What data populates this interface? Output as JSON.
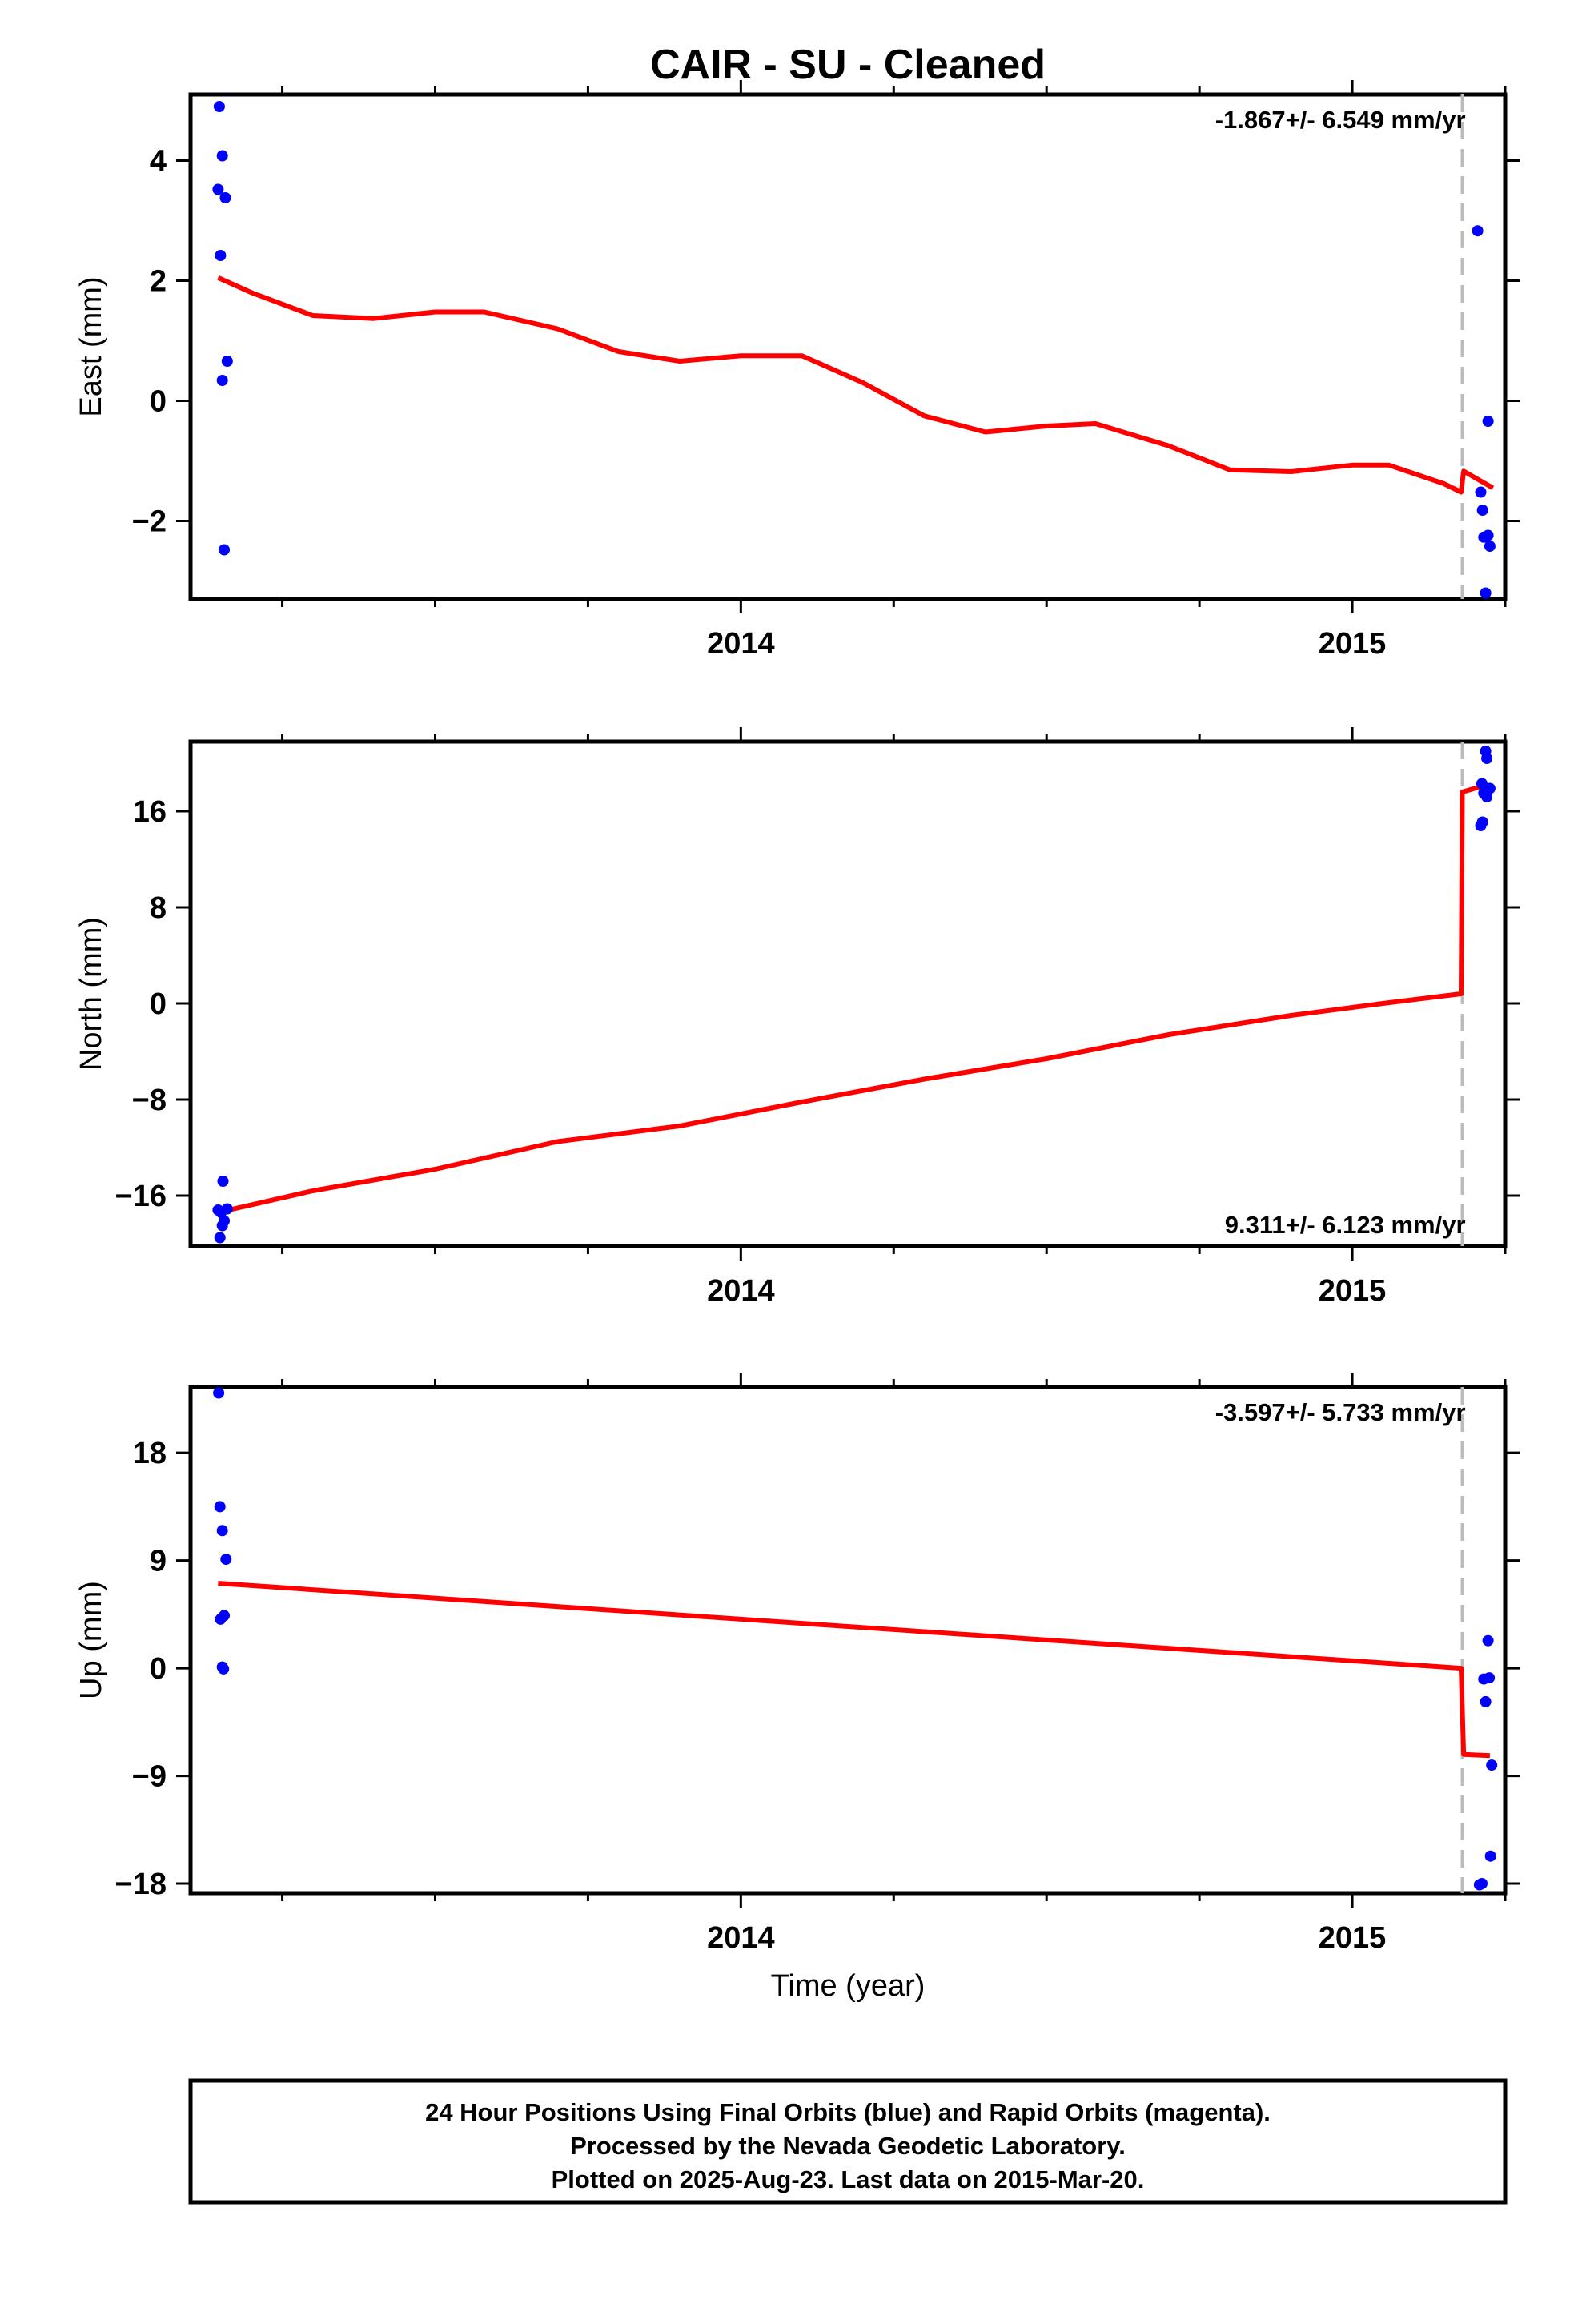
{
  "title": "CAIR  - SU - Cleaned",
  "xlabel": "Time (year)",
  "footer": [
    "24 Hour Positions Using Final Orbits (blue) and Rapid Orbits (magenta).",
    "Processed by the Nevada Geodetic Laboratory.",
    "Plotted on 2025-Aug-23. Last data on 2015-Mar-20."
  ],
  "colors": {
    "final_orbits": "#0000ff",
    "model": "#ff0000",
    "break_line": "#bbbbbb",
    "axes": "#000000"
  },
  "chart_data": [
    {
      "type": "scatter",
      "ylabel": "East (mm)",
      "rate_label": "-1.867+/- 6.549 mm/yr",
      "rate_position": "top-right",
      "xlim": [
        2013.1,
        2015.25
      ],
      "ylim": [
        -3.3,
        5.1
      ],
      "yticks": [
        -2,
        0,
        2,
        4
      ],
      "ytick_labels": [
        "−2",
        "0",
        "2",
        "4"
      ],
      "xticks": [
        2014,
        2015
      ],
      "xtick_labels": [
        "2014",
        "2015"
      ],
      "xminor": [
        2013.25,
        2013.5,
        2013.75,
        2014.25,
        2014.5,
        2014.75,
        2015.25
      ],
      "break_x": 2015.18,
      "points": [
        [
          2013.147,
          4.9
        ],
        [
          2013.152,
          4.08
        ],
        [
          2013.145,
          3.52
        ],
        [
          2013.157,
          3.38
        ],
        [
          2013.149,
          2.42
        ],
        [
          2013.16,
          0.66
        ],
        [
          2013.152,
          0.34
        ],
        [
          2013.155,
          -2.48
        ],
        [
          2015.205,
          2.83
        ],
        [
          2015.222,
          -0.34
        ],
        [
          2015.21,
          -1.52
        ],
        [
          2015.213,
          -1.82
        ],
        [
          2015.215,
          -2.27
        ],
        [
          2015.222,
          -2.24
        ],
        [
          2015.225,
          -2.42
        ],
        [
          2015.218,
          -3.2
        ]
      ],
      "model": [
        [
          2013.145,
          2.05
        ],
        [
          2013.2,
          1.8
        ],
        [
          2013.3,
          1.42
        ],
        [
          2013.4,
          1.37
        ],
        [
          2013.5,
          1.48
        ],
        [
          2013.58,
          1.48
        ],
        [
          2013.7,
          1.2
        ],
        [
          2013.8,
          0.82
        ],
        [
          2013.9,
          0.66
        ],
        [
          2014.0,
          0.75
        ],
        [
          2014.1,
          0.75
        ],
        [
          2014.2,
          0.3
        ],
        [
          2014.3,
          -0.25
        ],
        [
          2014.4,
          -0.52
        ],
        [
          2014.5,
          -0.42
        ],
        [
          2014.58,
          -0.38
        ],
        [
          2014.7,
          -0.75
        ],
        [
          2014.8,
          -1.15
        ],
        [
          2014.9,
          -1.18
        ],
        [
          2015.0,
          -1.07
        ],
        [
          2015.06,
          -1.07
        ],
        [
          2015.15,
          -1.38
        ],
        [
          2015.178,
          -1.52
        ],
        [
          2015.182,
          -1.17
        ],
        [
          2015.23,
          -1.45
        ]
      ]
    },
    {
      "type": "scatter",
      "ylabel": "North (mm)",
      "rate_label": "9.311+/- 6.123 mm/yr",
      "rate_position": "bottom-right",
      "xlim": [
        2013.1,
        2015.25
      ],
      "ylim": [
        -20.2,
        21.8
      ],
      "yticks": [
        -16,
        -8,
        0,
        8,
        16
      ],
      "ytick_labels": [
        "−16",
        "−8",
        "0",
        "8",
        "16"
      ],
      "xticks": [
        2014,
        2015
      ],
      "xtick_labels": [
        "2014",
        "2015"
      ],
      "xminor": [
        2013.25,
        2013.5,
        2013.75,
        2014.25,
        2014.5,
        2014.75,
        2015.25
      ],
      "break_x": 2015.18,
      "points": [
        [
          2013.153,
          -14.8
        ],
        [
          2013.145,
          -17.2
        ],
        [
          2013.15,
          -17.4
        ],
        [
          2013.16,
          -17.1
        ],
        [
          2013.155,
          -18.1
        ],
        [
          2013.152,
          -18.5
        ],
        [
          2013.148,
          -19.5
        ],
        [
          2015.218,
          21.0
        ],
        [
          2015.22,
          20.4
        ],
        [
          2015.212,
          18.3
        ],
        [
          2015.225,
          17.9
        ],
        [
          2015.215,
          17.5
        ],
        [
          2015.22,
          17.2
        ],
        [
          2015.213,
          15.1
        ],
        [
          2015.21,
          14.8
        ]
      ],
      "model": [
        [
          2013.145,
          -17.4
        ],
        [
          2013.3,
          -15.6
        ],
        [
          2013.5,
          -13.8
        ],
        [
          2013.7,
          -11.5
        ],
        [
          2013.9,
          -10.2
        ],
        [
          2014.1,
          -8.2
        ],
        [
          2014.3,
          -6.3
        ],
        [
          2014.5,
          -4.6
        ],
        [
          2014.7,
          -2.6
        ],
        [
          2014.9,
          -1.0
        ],
        [
          2015.05,
          0.0
        ],
        [
          2015.178,
          0.8
        ],
        [
          2015.18,
          17.6
        ],
        [
          2015.22,
          18.2
        ]
      ]
    },
    {
      "type": "scatter",
      "ylabel": "Up (mm)",
      "rate_label": "-3.597+/- 5.733 mm/yr",
      "rate_position": "top-right",
      "xlim": [
        2013.1,
        2015.25
      ],
      "ylim": [
        -18.8,
        23.5
      ],
      "yticks": [
        -18,
        -9,
        0,
        9,
        18
      ],
      "ytick_labels": [
        "−18",
        "−9",
        "0",
        "9",
        "18"
      ],
      "xticks": [
        2014,
        2015
      ],
      "xtick_labels": [
        "2014",
        "2015"
      ],
      "xminor": [
        2013.25,
        2013.5,
        2013.75,
        2014.25,
        2014.5,
        2014.75,
        2015.25
      ],
      "break_x": 2015.18,
      "points": [
        [
          2013.146,
          23.0
        ],
        [
          2013.148,
          13.5
        ],
        [
          2013.152,
          11.5
        ],
        [
          2013.158,
          9.1
        ],
        [
          2013.155,
          4.4
        ],
        [
          2013.149,
          4.1
        ],
        [
          2013.152,
          0.1
        ],
        [
          2013.154,
          -0.05
        ],
        [
          2015.222,
          2.3
        ],
        [
          2015.224,
          -0.8
        ],
        [
          2015.215,
          -0.9
        ],
        [
          2015.218,
          -2.8
        ],
        [
          2015.228,
          -8.1
        ],
        [
          2015.226,
          -15.7
        ],
        [
          2015.212,
          -18.0
        ],
        [
          2015.208,
          -18.1
        ]
      ],
      "model": [
        [
          2013.145,
          7.1
        ],
        [
          2014.0,
          4.1
        ],
        [
          2015.178,
          0.0
        ],
        [
          2015.182,
          -7.2
        ],
        [
          2015.225,
          -7.3
        ]
      ]
    }
  ]
}
